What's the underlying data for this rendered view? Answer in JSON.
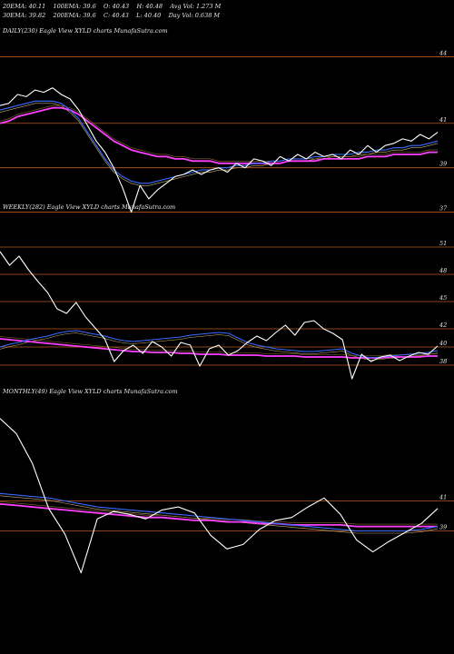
{
  "header": {
    "row1": [
      "20EMA: 40.11",
      "100EMA: 39.6",
      "O: 40.43",
      "H: 40.48",
      "Avg Vol: 1.273 M"
    ],
    "row2": [
      "30EMA: 39.82",
      "200EMA: 39.6",
      "C: 40.43",
      "L: 40.40",
      "Day Vol: 0.638 M"
    ]
  },
  "panels": {
    "daily_label": "DAILY(230) Eagle  View  XYLD charts MunafaSutra.com",
    "weekly_label": "WEEKLY(282) Eagle  View  XYLD charts MunafaSutra.com",
    "monthly_label": "MONTHLY(49) Eagle  View  XYLD charts MunafaSutra.com"
  },
  "colors": {
    "background": "#000000",
    "price": "#ffffff",
    "ema_short": "#3a6bff",
    "ema_long": "#ff40ff",
    "ema_mid": "#c8b070",
    "gridline": "#b85a1e"
  },
  "chart_data": [
    {
      "type": "line",
      "name": "daily",
      "y_ticks": [
        "44",
        "41",
        "39",
        "37"
      ],
      "ylim": [
        36,
        45
      ],
      "series": [
        {
          "values": [
            41.8,
            41.9,
            42.3,
            42.2,
            42.5,
            42.4,
            42.6,
            42.3,
            42.1,
            41.6,
            40.9,
            40.2,
            39.7,
            39.0,
            38.1,
            37.0,
            38.2,
            37.6,
            38.0,
            38.3,
            38.6,
            38.7,
            38.9,
            38.7,
            38.9,
            39.0,
            38.8,
            39.2,
            39.0,
            39.4,
            39.3,
            39.1,
            39.5,
            39.3,
            39.6,
            39.4,
            39.7,
            39.5,
            39.6,
            39.4,
            39.8,
            39.6,
            40.0,
            39.7,
            40.0,
            40.1,
            40.3,
            40.2,
            40.5,
            40.3,
            40.6
          ]
        },
        {
          "values": [
            41.6,
            41.7,
            41.8,
            41.9,
            42.0,
            42.0,
            42.0,
            41.9,
            41.6,
            41.2,
            40.6,
            40.0,
            39.4,
            38.9,
            38.6,
            38.4,
            38.3,
            38.3,
            38.4,
            38.5,
            38.6,
            38.7,
            38.8,
            38.9,
            38.9,
            39.0,
            39.0,
            39.1,
            39.1,
            39.2,
            39.2,
            39.3,
            39.3,
            39.4,
            39.4,
            39.4,
            39.5,
            39.5,
            39.6,
            39.6,
            39.6,
            39.7,
            39.7,
            39.8,
            39.8,
            39.9,
            39.9,
            40.0,
            40.0,
            40.1,
            40.2
          ]
        },
        {
          "values": [
            41.0,
            41.1,
            41.3,
            41.4,
            41.5,
            41.6,
            41.7,
            41.7,
            41.6,
            41.4,
            41.1,
            40.8,
            40.5,
            40.2,
            40.0,
            39.8,
            39.7,
            39.6,
            39.5,
            39.5,
            39.4,
            39.4,
            39.3,
            39.3,
            39.3,
            39.2,
            39.2,
            39.2,
            39.2,
            39.2,
            39.2,
            39.2,
            39.2,
            39.3,
            39.3,
            39.3,
            39.3,
            39.4,
            39.4,
            39.4,
            39.4,
            39.4,
            39.5,
            39.5,
            39.5,
            39.6,
            39.6,
            39.6,
            39.6,
            39.7,
            39.7
          ]
        }
      ]
    },
    {
      "type": "line",
      "name": "weekly",
      "y_ticks": [
        "51",
        "48",
        "45",
        "42",
        "40",
        "38"
      ],
      "ylim": [
        36,
        52
      ],
      "series": [
        {
          "values": [
            50.5,
            49.0,
            50.0,
            48.5,
            47.2,
            46.0,
            44.2,
            43.7,
            44.9,
            43.3,
            42.1,
            40.9,
            38.4,
            39.6,
            40.2,
            39.3,
            40.6,
            40.0,
            39.0,
            40.5,
            40.2,
            37.9,
            39.8,
            40.2,
            39.1,
            39.6,
            40.5,
            41.2,
            40.7,
            41.6,
            42.4,
            41.3,
            42.7,
            42.9,
            42.0,
            41.5,
            40.8,
            36.5,
            39.2,
            38.4,
            38.9,
            39.1,
            38.5,
            39.0,
            39.4,
            39.2,
            40.1
          ]
        },
        {
          "values": [
            40.0,
            40.3,
            40.5,
            40.8,
            41.0,
            41.2,
            41.5,
            41.7,
            41.8,
            41.6,
            41.4,
            41.2,
            40.9,
            40.7,
            40.6,
            40.7,
            40.8,
            40.9,
            41.0,
            41.1,
            41.3,
            41.4,
            41.5,
            41.6,
            41.5,
            41.0,
            40.5,
            40.2,
            40.0,
            39.8,
            39.7,
            39.6,
            39.5,
            39.5,
            39.6,
            39.7,
            39.8,
            39.3,
            39.0,
            38.8,
            38.9,
            39.0,
            39.1,
            39.2,
            39.3,
            39.4,
            39.6
          ]
        },
        {
          "values": [
            40.9,
            40.8,
            40.7,
            40.6,
            40.5,
            40.4,
            40.3,
            40.2,
            40.1,
            40.0,
            39.9,
            39.8,
            39.7,
            39.6,
            39.5,
            39.5,
            39.4,
            39.4,
            39.4,
            39.3,
            39.3,
            39.2,
            39.2,
            39.2,
            39.1,
            39.1,
            39.1,
            39.1,
            39.0,
            39.0,
            39.0,
            39.0,
            38.9,
            38.9,
            38.9,
            38.9,
            38.9,
            38.8,
            38.8,
            38.8,
            38.8,
            38.9,
            38.9,
            38.9,
            38.9,
            39.0,
            39.0
          ]
        }
      ]
    },
    {
      "type": "line",
      "name": "monthly",
      "y_ticks": [
        "41",
        "39"
      ],
      "ylim": [
        32,
        48
      ],
      "series": [
        {
          "values": [
            46.5,
            45.5,
            43.5,
            40.5,
            38.8,
            36.2,
            39.8,
            40.3,
            40.1,
            39.8,
            40.4,
            40.6,
            40.2,
            38.7,
            37.8,
            38.1,
            39.1,
            39.7,
            39.9,
            40.6,
            41.2,
            40.1,
            38.4,
            37.6,
            38.3,
            38.9,
            39.5,
            40.5
          ]
        },
        {
          "values": [
            41.5,
            41.4,
            41.3,
            41.2,
            41.0,
            40.8,
            40.6,
            40.5,
            40.4,
            40.3,
            40.2,
            40.1,
            40.0,
            39.9,
            39.8,
            39.7,
            39.6,
            39.5,
            39.4,
            39.3,
            39.2,
            39.1,
            39.0,
            39.0,
            39.0,
            39.0,
            39.1,
            39.3
          ]
        },
        {
          "values": [
            40.8,
            40.7,
            40.6,
            40.5,
            40.4,
            40.3,
            40.2,
            40.1,
            40.0,
            39.9,
            39.9,
            39.8,
            39.7,
            39.7,
            39.6,
            39.6,
            39.5,
            39.5,
            39.4,
            39.4,
            39.4,
            39.4,
            39.3,
            39.3,
            39.3,
            39.3,
            39.3,
            39.3
          ]
        }
      ]
    }
  ]
}
